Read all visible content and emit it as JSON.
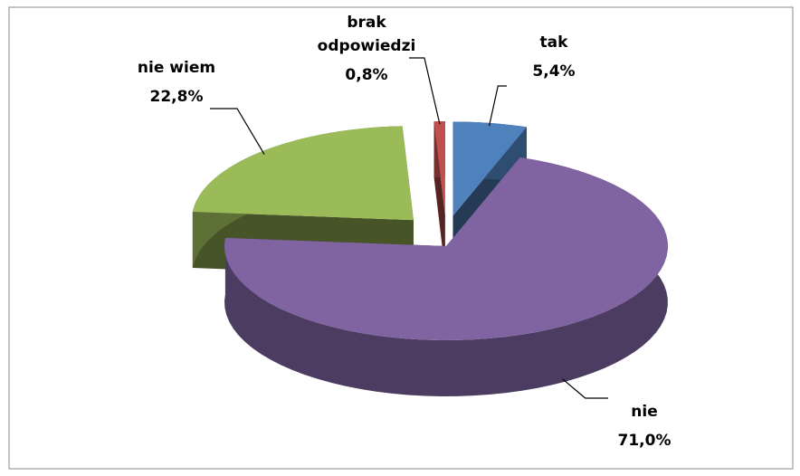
{
  "chart_data": {
    "type": "pie3d",
    "categories": [
      "tak",
      "nie",
      "nie wiem",
      "brak odpowiedzi"
    ],
    "values": [
      5.4,
      71.0,
      22.8,
      0.8
    ],
    "value_labels": [
      "5,4%",
      "71,0%",
      "22,8%",
      "0,8%"
    ],
    "colors": [
      "#4f81bd",
      "#8064a2",
      "#9bbb59",
      "#c0504d"
    ]
  }
}
